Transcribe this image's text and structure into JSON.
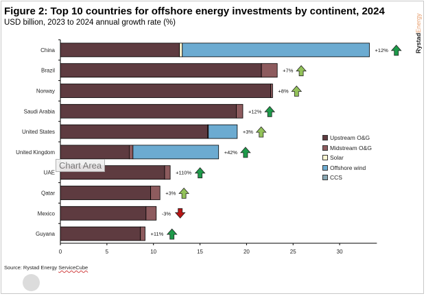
{
  "title": "Figure 2: Top 10 countries for offshore energy investments by continent, 2024",
  "subtitle": "USD billion, 2023 to 2024 annual growth rate (%)",
  "logo_text": "RystadEnergy",
  "source": {
    "prefix": "Source: Rystad Energy ",
    "underlined": "ServiceCube"
  },
  "tooltip": "Chart Area",
  "colors": {
    "upstream": "#5e3b40",
    "midstream": "#8d5b5e",
    "solar": "#fdf6d2",
    "offshore_wind": "#6cabd1",
    "ccs": "#8aa8b4",
    "arrow_strong_up": "#1e9a4a",
    "arrow_up": "#93c25a",
    "arrow_down": "#b81414"
  },
  "chart_data": {
    "type": "bar",
    "orientation": "horizontal",
    "stacked": true,
    "title": "Figure 2: Top 10 countries for offshore energy investments by continent, 2024",
    "subtitle": "USD billion, 2023 to 2024 annual growth rate (%)",
    "categories": [
      "China",
      "Brazil",
      "Norway",
      "Saudi Arabia",
      "United States",
      "United Kingdom",
      "UAE",
      "Qatar",
      "Mexico",
      "Guyana"
    ],
    "series": [
      {
        "name": "Upstream O&G",
        "values": [
          12.8,
          21.6,
          22.6,
          18.9,
          15.8,
          7.4,
          11.2,
          9.7,
          9.2,
          8.6
        ]
      },
      {
        "name": "Midstream O&G",
        "values": [
          0,
          1.7,
          0.2,
          0.7,
          0.1,
          0.4,
          0.6,
          1.0,
          1.1,
          0.5
        ]
      },
      {
        "name": "Solar",
        "values": [
          0.3,
          0,
          0,
          0,
          0,
          0,
          0,
          0,
          0,
          0
        ]
      },
      {
        "name": "Offshore wind",
        "values": [
          20.1,
          0,
          0,
          0,
          3.1,
          9.2,
          0,
          0,
          0,
          0
        ]
      },
      {
        "name": "CCS",
        "values": [
          0,
          0,
          0,
          0,
          0,
          0,
          0,
          0,
          0,
          0
        ]
      }
    ],
    "growth_labels": [
      "+12%",
      "+7%",
      "+8%",
      "+12%",
      "+3%",
      "+42%",
      "+110%",
      "+3%",
      "-3%",
      "+11%"
    ],
    "growth_arrows": [
      "strong_up",
      "up",
      "up",
      "strong_up",
      "up",
      "strong_up",
      "strong_up",
      "up",
      "down",
      "strong_up"
    ],
    "xlim": [
      0,
      34
    ],
    "xticks": [
      "0",
      "5",
      "10",
      "15",
      "20",
      "25",
      "30"
    ],
    "legend_position": "right",
    "grid": false
  }
}
